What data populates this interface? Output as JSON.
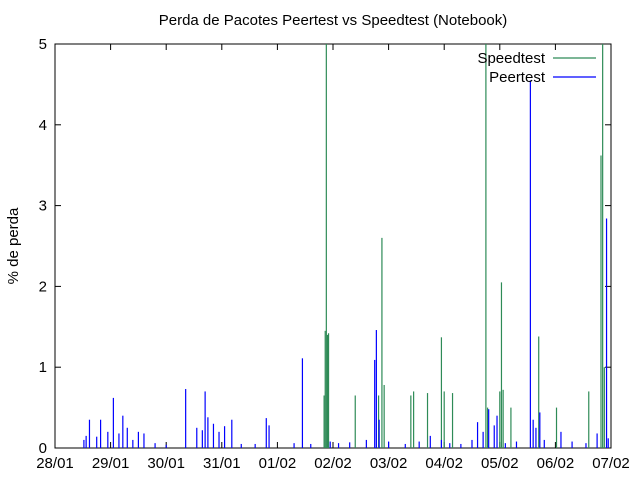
{
  "chart_data": {
    "type": "line",
    "title": "Perda de Pacotes Peertest vs Speedtest (Notebook)",
    "xlabel": "",
    "ylabel": "% de perda",
    "ylim": [
      0,
      5
    ],
    "xlim_days": [
      0,
      10
    ],
    "x_tick_labels": [
      "28/01",
      "29/01",
      "30/01",
      "31/01",
      "01/02",
      "02/02",
      "03/02",
      "04/02",
      "05/02",
      "06/02",
      "07/02"
    ],
    "y_tick_labels": [
      "0",
      "1",
      "2",
      "3",
      "4",
      "5"
    ],
    "y_ticks": [
      0,
      1,
      2,
      3,
      4,
      5
    ],
    "grid": false,
    "legend_position": "top-right",
    "series": [
      {
        "name": "Speedtest",
        "color": "#2e8b57",
        "points": [
          [
            4.84,
            0.65
          ],
          [
            4.86,
            1.45
          ],
          [
            4.88,
            5.0
          ],
          [
            4.9,
            1.4
          ],
          [
            4.92,
            1.42
          ],
          [
            5.4,
            0.65
          ],
          [
            5.82,
            0.65
          ],
          [
            5.88,
            2.6
          ],
          [
            5.92,
            0.78
          ],
          [
            6.4,
            0.65
          ],
          [
            6.45,
            0.7
          ],
          [
            6.7,
            0.68
          ],
          [
            6.95,
            1.37
          ],
          [
            7.0,
            0.7
          ],
          [
            7.15,
            0.68
          ],
          [
            7.75,
            5.0
          ],
          [
            7.78,
            0.5
          ],
          [
            8.0,
            0.7
          ],
          [
            8.03,
            2.05
          ],
          [
            8.06,
            0.72
          ],
          [
            8.2,
            0.5
          ],
          [
            8.7,
            1.38
          ],
          [
            9.02,
            0.5
          ],
          [
            9.6,
            0.7
          ],
          [
            9.82,
            3.62
          ],
          [
            9.85,
            5.0
          ],
          [
            9.88,
            1.0
          ]
        ]
      },
      {
        "name": "Peertest",
        "color": "#0000ff",
        "points": [
          [
            0.52,
            0.1
          ],
          [
            0.56,
            0.15
          ],
          [
            0.62,
            0.35
          ],
          [
            0.75,
            0.14
          ],
          [
            0.82,
            0.35
          ],
          [
            0.95,
            0.2
          ],
          [
            1.05,
            0.62
          ],
          [
            1.15,
            0.18
          ],
          [
            1.22,
            0.4
          ],
          [
            1.3,
            0.25
          ],
          [
            1.4,
            0.1
          ],
          [
            1.5,
            0.2
          ],
          [
            1.6,
            0.18
          ],
          [
            1.8,
            0.06
          ],
          [
            2.0,
            0.04
          ],
          [
            2.35,
            0.73
          ],
          [
            2.55,
            0.25
          ],
          [
            2.65,
            0.22
          ],
          [
            2.7,
            0.7
          ],
          [
            2.75,
            0.38
          ],
          [
            2.85,
            0.3
          ],
          [
            2.95,
            0.2
          ],
          [
            3.05,
            0.27
          ],
          [
            3.18,
            0.35
          ],
          [
            3.35,
            0.05
          ],
          [
            3.6,
            0.05
          ],
          [
            3.8,
            0.37
          ],
          [
            3.85,
            0.28
          ],
          [
            4.3,
            0.06
          ],
          [
            4.45,
            1.11
          ],
          [
            4.6,
            0.05
          ],
          [
            4.95,
            0.08
          ],
          [
            5.1,
            0.06
          ],
          [
            5.3,
            0.07
          ],
          [
            5.6,
            0.1
          ],
          [
            5.75,
            1.09
          ],
          [
            5.78,
            1.46
          ],
          [
            5.83,
            0.35
          ],
          [
            6.0,
            0.08
          ],
          [
            6.3,
            0.05
          ],
          [
            6.55,
            0.08
          ],
          [
            6.75,
            0.15
          ],
          [
            6.95,
            0.1
          ],
          [
            7.1,
            0.06
          ],
          [
            7.3,
            0.05
          ],
          [
            7.5,
            0.1
          ],
          [
            7.6,
            0.32
          ],
          [
            7.7,
            0.2
          ],
          [
            7.8,
            0.48
          ],
          [
            7.9,
            0.28
          ],
          [
            7.95,
            0.4
          ],
          [
            8.1,
            0.06
          ],
          [
            8.3,
            0.08
          ],
          [
            8.55,
            4.55
          ],
          [
            8.6,
            0.35
          ],
          [
            8.65,
            0.25
          ],
          [
            8.72,
            0.44
          ],
          [
            8.8,
            0.1
          ],
          [
            9.1,
            0.2
          ],
          [
            9.3,
            0.08
          ],
          [
            9.55,
            0.06
          ],
          [
            9.75,
            0.18
          ],
          [
            9.92,
            2.84
          ],
          [
            9.95,
            0.12
          ]
        ]
      }
    ]
  }
}
